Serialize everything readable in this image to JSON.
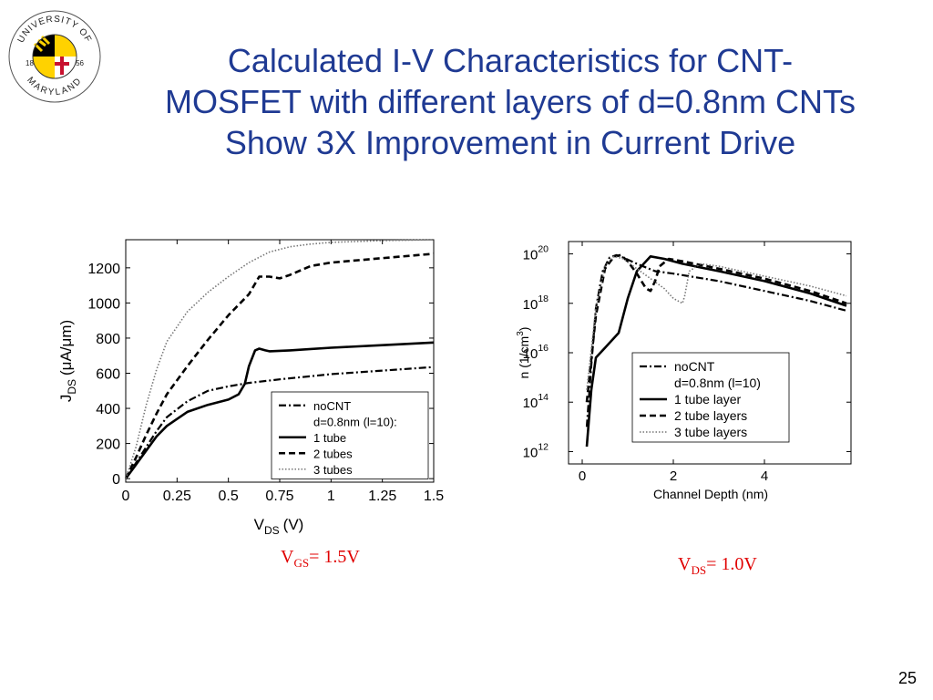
{
  "logo": {
    "arc_top": "UNIVERSITY OF",
    "arc_bottom": "MARYLAND",
    "year_left": "18",
    "year_right": "56"
  },
  "title_lines": [
    "Calculated I-V Characteristics for CNT-",
    "MOSFET with different layers of d=0.8nm CNTs",
    "Show 3X  Improvement in Current Drive"
  ],
  "captions": {
    "left": {
      "main": "V",
      "sub": "GS",
      "rest": "= 1.5V"
    },
    "right": {
      "main": "V",
      "sub": "DS",
      "rest": "= 1.0V"
    }
  },
  "page_number": "25",
  "colors": {
    "title": "#1f3a93",
    "caption": "#e00000"
  },
  "chart_data": [
    {
      "type": "line",
      "xlabel": "V",
      "xlabel_sub": "DS",
      "xlabel_unit": "(V)",
      "ylabel": "J",
      "ylabel_sub": "DS",
      "ylabel_unit": "(μA/μm)",
      "xlim": [
        0,
        1.5
      ],
      "ylim": [
        -20,
        1360
      ],
      "xticks": [
        0,
        0.25,
        0.5,
        0.75,
        1,
        1.25,
        1.5
      ],
      "xtick_labels": [
        "0",
        "0.25",
        "0.5",
        "0.75",
        "1",
        "1.25",
        "1.5"
      ],
      "yticks": [
        0,
        200,
        400,
        600,
        800,
        1000,
        1200
      ],
      "ytick_labels": [
        "0",
        "200",
        "400",
        "600",
        "800",
        "1000",
        "1200"
      ],
      "grid": false,
      "legend_position": "bottom-right",
      "legend": [
        {
          "label": "noCNT",
          "style": "dashdot"
        },
        {
          "label": "d=0.8nm (l=10):",
          "style": "none"
        },
        {
          "label": "1 tube",
          "style": "solid"
        },
        {
          "label": "2 tubes",
          "style": "dashed"
        },
        {
          "label": "3 tubes",
          "style": "dotted"
        }
      ],
      "series": [
        {
          "name": "noCNT",
          "style": "dashdot",
          "x": [
            0,
            0.05,
            0.1,
            0.15,
            0.2,
            0.3,
            0.4,
            0.5,
            0.6,
            0.75,
            1.0,
            1.25,
            1.5
          ],
          "y": [
            0,
            90,
            180,
            270,
            350,
            440,
            500,
            525,
            545,
            565,
            595,
            615,
            635
          ]
        },
        {
          "name": "1 tube",
          "style": "solid",
          "x": [
            0,
            0.05,
            0.1,
            0.15,
            0.2,
            0.3,
            0.4,
            0.5,
            0.55,
            0.58,
            0.6,
            0.63,
            0.65,
            0.68,
            0.7,
            0.8,
            1.0,
            1.25,
            1.5
          ],
          "y": [
            0,
            80,
            160,
            240,
            300,
            380,
            420,
            450,
            480,
            540,
            640,
            730,
            740,
            730,
            725,
            730,
            745,
            760,
            775
          ]
        },
        {
          "name": "2 tubes",
          "style": "dashed",
          "x": [
            0,
            0.05,
            0.1,
            0.15,
            0.2,
            0.3,
            0.4,
            0.5,
            0.6,
            0.65,
            0.7,
            0.75,
            0.8,
            0.9,
            1.0,
            1.25,
            1.5
          ],
          "y": [
            0,
            120,
            250,
            370,
            480,
            640,
            790,
            930,
            1050,
            1150,
            1150,
            1140,
            1160,
            1210,
            1230,
            1255,
            1280
          ]
        },
        {
          "name": "3 tubes",
          "style": "dotted",
          "x": [
            0,
            0.05,
            0.1,
            0.15,
            0.2,
            0.3,
            0.4,
            0.5,
            0.6,
            0.7,
            0.8,
            0.9,
            1.0,
            1.25,
            1.5
          ],
          "y": [
            0,
            180,
            420,
            620,
            780,
            950,
            1060,
            1150,
            1230,
            1290,
            1320,
            1335,
            1345,
            1355,
            1360
          ]
        }
      ]
    },
    {
      "type": "line",
      "xlabel": "Channel Depth (nm)",
      "ylabel": "n (1/cm",
      "ylabel_sup": "3",
      "ylabel_end": ")",
      "yscale": "log",
      "xlim": [
        -0.3,
        5.9
      ],
      "ylim_log10": [
        11.5,
        20.5
      ],
      "xticks": [
        0,
        2,
        4
      ],
      "xtick_labels": [
        "0",
        "2",
        "4"
      ],
      "yticks_log10": [
        12,
        14,
        16,
        18,
        20
      ],
      "ytick_base": "10",
      "ytick_exponents": [
        "12",
        "14",
        "16",
        "18",
        "20"
      ],
      "grid": false,
      "legend_position": "bottom-right",
      "legend": [
        {
          "label": "noCNT",
          "style": "dashdot"
        },
        {
          "label": "d=0.8nm (l=10)",
          "style": "none"
        },
        {
          "label": "1 tube layer",
          "style": "solid"
        },
        {
          "label": "2 tube layers",
          "style": "dashed"
        },
        {
          "label": "3 tube layers",
          "style": "dotted"
        }
      ],
      "series": [
        {
          "name": "noCNT",
          "style": "dashdot",
          "x": [
            0.1,
            0.2,
            0.3,
            0.45,
            0.6,
            0.75,
            0.9,
            1.2,
            1.6,
            2,
            3,
            4,
            5,
            5.8
          ],
          "y_log10": [
            13.0,
            15.5,
            17.8,
            19.3,
            19.85,
            19.95,
            19.85,
            19.6,
            19.3,
            19.2,
            18.9,
            18.5,
            18.1,
            17.7
          ]
        },
        {
          "name": "1 tube layer",
          "style": "solid",
          "x": [
            0.1,
            0.2,
            0.3,
            0.5,
            0.8,
            1.0,
            1.2,
            1.5,
            1.8,
            2.2,
            3,
            4,
            5,
            5.8
          ],
          "y_log10": [
            12.2,
            14.5,
            15.8,
            16.2,
            16.8,
            18.2,
            19.3,
            19.9,
            19.8,
            19.6,
            19.3,
            18.9,
            18.4,
            17.9
          ]
        },
        {
          "name": "2 tube layers",
          "style": "dashed",
          "x": [
            0.1,
            0.3,
            0.5,
            0.7,
            0.85,
            1.0,
            1.2,
            1.4,
            1.5,
            1.6,
            1.7,
            1.9,
            2.2,
            3,
            4,
            5,
            5.8
          ],
          "y_log10": [
            14.0,
            17.5,
            19.4,
            19.9,
            19.95,
            19.7,
            19.2,
            18.6,
            18.5,
            18.9,
            19.5,
            19.8,
            19.7,
            19.4,
            19.0,
            18.5,
            18.0
          ]
        },
        {
          "name": "3 tube layers",
          "style": "dotted",
          "x": [
            0.1,
            0.3,
            0.5,
            0.7,
            0.9,
            1.2,
            1.5,
            1.8,
            2.0,
            2.2,
            2.25,
            2.35,
            2.6,
            3,
            4,
            5,
            5.8
          ],
          "y_log10": [
            14.5,
            17.8,
            19.5,
            19.9,
            19.8,
            19.4,
            19.0,
            18.6,
            18.2,
            18.0,
            18.3,
            19.3,
            19.6,
            19.5,
            19.1,
            18.7,
            18.3
          ]
        }
      ]
    }
  ]
}
